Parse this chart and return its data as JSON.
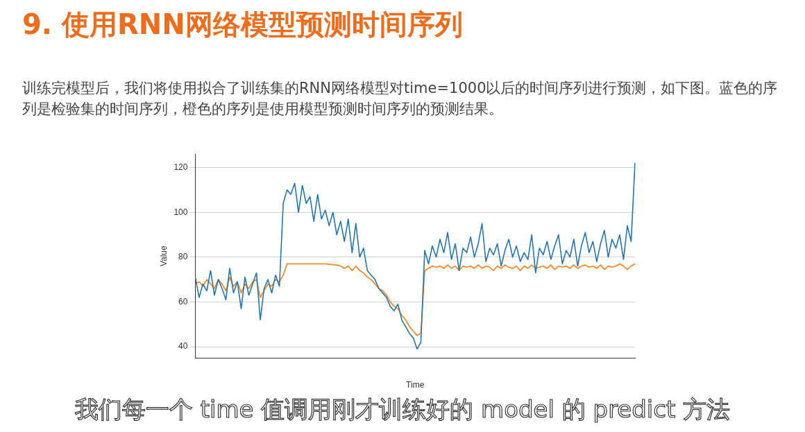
{
  "chart_data": {
    "type": "line",
    "title": "9. 使用RNN网络模型预测时间序列",
    "subtitle": "训练完模型后，我们将使用拟合了训练集的RNN网络模型对time=1000以后的时间序列进行预测，如下图。蓝色的序列是检验集的时间序列，橙色的序列是使用模型预测时间序列的预测结果。",
    "xlabel": "Time",
    "ylabel": "Value",
    "annotations": [
      "我们每一个 time 值调用刚才训练好的 model 的 predict 方法"
    ],
    "categories": [
      null,
      null,
      null,
      null,
      null,
      null,
      null,
      null,
      null,
      null,
      null,
      null,
      null,
      null,
      null,
      null,
      null,
      null,
      null,
      null,
      null,
      null,
      null,
      null,
      null,
      null,
      null,
      null,
      null,
      null,
      null,
      null,
      null,
      null,
      null,
      null,
      null,
      null,
      null,
      null,
      null,
      null,
      null,
      null,
      null,
      null,
      null,
      null,
      null,
      null,
      null,
      null,
      null,
      null,
      null,
      null,
      null,
      null,
      null,
      null,
      null,
      null,
      null,
      null,
      null,
      null,
      null,
      null,
      null,
      null,
      null,
      null,
      null,
      null,
      null,
      null,
      null,
      null,
      null,
      null,
      null,
      null,
      null,
      null,
      null,
      null,
      null,
      null,
      null,
      null,
      null,
      null,
      null,
      null,
      null,
      null,
      null,
      null,
      null,
      null,
      null,
      null,
      null,
      null,
      null,
      null,
      null,
      null,
      null,
      null,
      null,
      null,
      null,
      null,
      null,
      null
    ],
    "series": [
      {
        "color": "#1f77b4",
        "values": [
          71,
          62,
          68,
          65,
          74,
          63,
          70,
          66,
          61,
          75,
          64,
          69,
          57,
          71,
          63,
          68,
          73,
          52,
          66,
          70,
          64,
          72,
          67,
          104,
          110,
          108,
          113,
          100,
          112,
          104,
          107,
          96,
          108,
          97,
          101,
          94,
          100,
          90,
          96,
          87,
          97,
          82,
          95,
          80,
          84,
          74,
          72,
          70,
          66,
          64,
          62,
          58,
          56,
          59,
          52,
          49,
          46,
          44,
          39,
          42,
          83,
          77,
          85,
          80,
          88,
          82,
          91,
          79,
          86,
          74,
          84,
          82,
          89,
          80,
          86,
          95,
          78,
          84,
          81,
          86,
          76,
          83,
          88,
          80,
          85,
          78,
          82,
          79,
          90,
          73,
          84,
          81,
          87,
          79,
          85,
          90,
          77,
          83,
          80,
          88,
          76,
          85,
          91,
          82,
          87,
          78,
          86,
          92,
          80,
          88,
          84,
          90,
          79,
          94,
          87,
          122
        ]
      },
      {
        "color": "#ff7f0e",
        "values": [
          68,
          69,
          67,
          70,
          68,
          66,
          70,
          68,
          65,
          71,
          67,
          69,
          64,
          68,
          66,
          69,
          70,
          62,
          65,
          68,
          67,
          70,
          69,
          72,
          77,
          77,
          77,
          77,
          77,
          77,
          77,
          77,
          77,
          77,
          77,
          76.8,
          76.6,
          76.5,
          76,
          75,
          76,
          74,
          76,
          74,
          73,
          71,
          70,
          68,
          66,
          65,
          63,
          60,
          58,
          57,
          54,
          52,
          49,
          47,
          45,
          46,
          74,
          75,
          76,
          75.5,
          76,
          75,
          76.5,
          75,
          76,
          74,
          76,
          75.5,
          76,
          75,
          76.5,
          75,
          76,
          75.5,
          74,
          76,
          75,
          76.5,
          75.5,
          75,
          76,
          74,
          76,
          75,
          76.5,
          75,
          75.5,
          76,
          75,
          76.5,
          74.5,
          76,
          75.5,
          76,
          75,
          76.5,
          75,
          76,
          76.5,
          75.5,
          76,
          75,
          76.5,
          74.5,
          76,
          75.5,
          76,
          77,
          76,
          74.5,
          76,
          77
        ]
      }
    ],
    "ylim": [
      35,
      126
    ],
    "yticks": [
      40,
      60,
      80,
      100,
      120
    ],
    "grid": "y",
    "legend": false,
    "marker": "none",
    "line_style": "solid"
  }
}
